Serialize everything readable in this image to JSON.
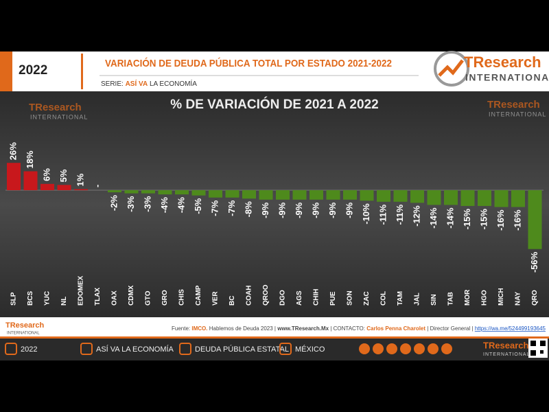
{
  "header": {
    "year": "2022",
    "title": "VARIACIÓN DE DEUDA PÚBLICA TOTAL POR ESTADO 2021-2022",
    "series_label": "SERIE:",
    "series_name": "ASÍ VA",
    "series_rest": "LA ECONOMÍA",
    "logo_brand": "TResearch",
    "logo_sub": "INTERNATIONAL"
  },
  "chart_data": {
    "type": "bar",
    "title": "% DE VARIACIÓN DE 2021 A 2022",
    "categories": [
      "SLP",
      "BCS",
      "YUC",
      "NL",
      "EDOMEX",
      "TLAX",
      "OAX",
      "CDMX",
      "GTO",
      "GRO",
      "CHIS",
      "CAMP",
      "VER",
      "BC",
      "COAH",
      "QROO",
      "DGO",
      "AGS",
      "CHIH",
      "PUE",
      "SON",
      "ZAC",
      "COL",
      "TAM",
      "JAL",
      "SIN",
      "TAB",
      "MOR",
      "HGO",
      "MICH",
      "NAY",
      "QRO"
    ],
    "values": [
      26,
      18,
      6,
      5,
      1,
      0,
      -2,
      -3,
      -3,
      -4,
      -4,
      -5,
      -7,
      -7,
      -8,
      -9,
      -9,
      -9,
      -9,
      -9,
      -9,
      -10,
      -11,
      -11,
      -12,
      -14,
      -14,
      -15,
      -15,
      -16,
      -16,
      -56
    ],
    "value_labels": [
      "26%",
      "18%",
      "6%",
      "5%",
      "1%",
      "-",
      "-2%",
      "-3%",
      "-3%",
      "-4%",
      "-4%",
      "-5%",
      "-7%",
      "-7%",
      "-8%",
      "-9%",
      "-9%",
      "-9%",
      "-9%",
      "-9%",
      "-9%",
      "-10%",
      "-11%",
      "-11%",
      "-12%",
      "-14%",
      "-14%",
      "-15%",
      "-15%",
      "-16%",
      "-16%",
      "-56%"
    ],
    "positive_color": "#c8181c",
    "negative_color": "#4e8a1c"
  },
  "source": {
    "parts": [
      "Fuente:",
      "IMCO.",
      "Hablemos de Deuda 2023",
      "|",
      "www.TResearch.Mx",
      "|",
      "CONTACTO:",
      "Carlos Penna Charolet",
      "| Director General |",
      "https://wa.me/524499193645"
    ]
  },
  "footer_nav": [
    "2022",
    "ASÍ VA LA ECONOMÍA",
    "DEUDA PÚBLICA ESTATAL",
    "MÉXICO"
  ]
}
